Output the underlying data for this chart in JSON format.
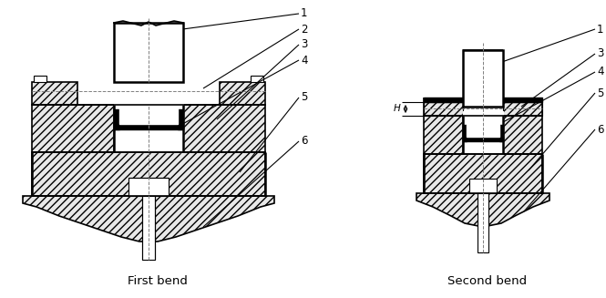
{
  "title_left": "First bend",
  "title_right": "Second bend",
  "bg_color": "#ffffff",
  "line_color": "#000000",
  "fig_width": 6.65,
  "fig_height": 3.27,
  "dpi": 100
}
